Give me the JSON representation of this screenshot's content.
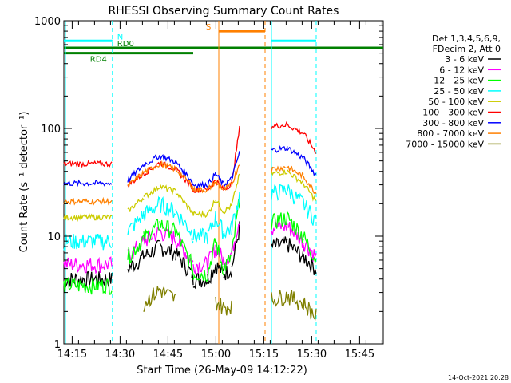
{
  "chart_data": {
    "type": "line",
    "title": "RHESSI Observing Summary Count Rates",
    "xlabel": "Start Time (26-May-09 14:12:22)",
    "ylabel": "Count Rate (s⁻¹ detector⁻¹)",
    "yscale": "log",
    "ylim": [
      1,
      1000
    ],
    "xlim_minutes": [
      0,
      100
    ],
    "y_tick_labels": [
      "1",
      "10",
      "100",
      "1000"
    ],
    "x_tick_labels": [
      "14:15",
      "14:30",
      "14:45",
      "15:00",
      "15:15",
      "15:30",
      "15:45"
    ],
    "x_tick_positions_minutes": [
      2.6,
      17.6,
      32.6,
      47.6,
      62.6,
      77.6,
      92.6
    ],
    "footer_date": "14-Oct-2021 20:28",
    "legend": {
      "header": [
        "Det 1,3,4,5,6,9,",
        "FDecim 2, Att 0"
      ],
      "placement": "right"
    },
    "flags": [
      {
        "label": "N",
        "color": "#00ffff",
        "y": 650,
        "segments": [
          [
            0,
            15.2
          ],
          [
            65,
            79
          ]
        ]
      },
      {
        "label": "RD0",
        "color": "#008000",
        "y": 560,
        "segments": [
          [
            0,
            100
          ]
        ]
      },
      {
        "label": "RD4",
        "color": "#008000",
        "y": 500,
        "segments": [
          [
            0,
            40.5
          ]
        ]
      },
      {
        "label": "S",
        "color": "#ff8000",
        "y": 800,
        "segments": [
          [
            48.5,
            63
          ]
        ]
      }
    ],
    "vlines": [
      {
        "x": 0.5,
        "color": "#00ffff",
        "dashed": false
      },
      {
        "x": 15.2,
        "color": "#00ffff",
        "dashed": true
      },
      {
        "x": 48.5,
        "color": "#ff8000",
        "dashed": false
      },
      {
        "x": 63,
        "color": "#ff8000",
        "dashed": true
      },
      {
        "x": 65,
        "color": "#00ffff",
        "dashed": false
      },
      {
        "x": 79,
        "color": "#00ffff",
        "dashed": true
      }
    ],
    "x": [
      0,
      15,
      15.2,
      20,
      25,
      30,
      35,
      40,
      40.5,
      45,
      47.5,
      50,
      52.5,
      55,
      56,
      62,
      65,
      70,
      75,
      79
    ],
    "series": [
      {
        "name": "3 - 6 keV",
        "color": "#000000",
        "values": [
          4,
          4,
          null,
          5,
          6.5,
          8,
          7,
          4.5,
          4,
          4,
          5.5,
          4.5,
          5,
          12,
          null,
          null,
          8,
          8.5,
          6.5,
          5
        ]
      },
      {
        "name": "6 - 12 keV",
        "color": "#ff00ff",
        "values": [
          5.5,
          5.5,
          null,
          6.5,
          9,
          11,
          9.5,
          6,
          5.5,
          5.5,
          8,
          6,
          7,
          15,
          null,
          null,
          12,
          12.5,
          9,
          6.5
        ]
      },
      {
        "name": "12 - 25 keV",
        "color": "#00ff00",
        "values": [
          3.5,
          3.5,
          null,
          6.5,
          9.5,
          13,
          11,
          5.5,
          4.5,
          4.5,
          9,
          5,
          6.5,
          22,
          null,
          null,
          13.5,
          15,
          10,
          6
        ]
      },
      {
        "name": "25 - 50 keV",
        "color": "#00ffff",
        "values": [
          9,
          9,
          null,
          11,
          16,
          20,
          17,
          11,
          10,
          10,
          15,
          11,
          12,
          24,
          null,
          null,
          25,
          27,
          20,
          14
        ]
      },
      {
        "name": "50 - 100 keV",
        "color": "#cccc00",
        "values": [
          15,
          15,
          null,
          17,
          23,
          29,
          26,
          17,
          16,
          16,
          22,
          17,
          19,
          38,
          null,
          null,
          38,
          40,
          31,
          21
        ]
      },
      {
        "name": "100 - 300 keV",
        "color": "#ff0000",
        "values": [
          47,
          47,
          null,
          30,
          38,
          48,
          42,
          29,
          27,
          27,
          33,
          27,
          31,
          100,
          null,
          null,
          105,
          108,
          90,
          60
        ]
      },
      {
        "name": "300 - 800 keV",
        "color": "#0000ff",
        "values": [
          31,
          31,
          null,
          33,
          46,
          56,
          49,
          33,
          30,
          30,
          38,
          30,
          34,
          60,
          null,
          null,
          63,
          66,
          53,
          37
        ]
      },
      {
        "name": "800 - 7000 keV",
        "color": "#ff8000",
        "values": [
          21,
          21,
          null,
          29,
          39,
          47,
          42,
          30,
          27,
          27,
          32,
          27,
          30,
          48,
          null,
          null,
          42,
          44,
          36,
          25
        ]
      },
      {
        "name": "7000 - 15000 keV",
        "color": "#808000",
        "values": [
          null,
          null,
          null,
          null,
          2.4,
          3.2,
          2.6,
          null,
          null,
          null,
          2.5,
          2.2,
          2.3,
          null,
          null,
          null,
          2.6,
          2.8,
          2.4,
          1.8
        ]
      }
    ]
  }
}
